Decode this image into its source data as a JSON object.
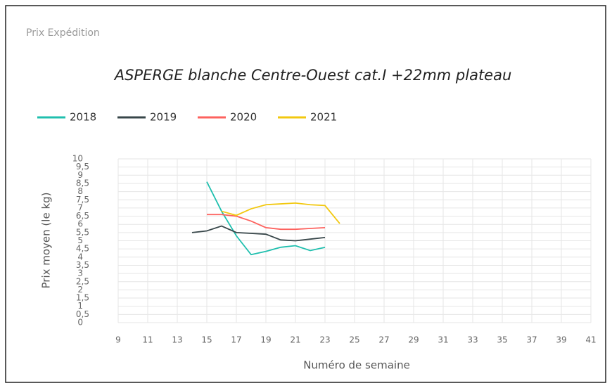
{
  "header": "Prix Expédition",
  "chart_data": {
    "type": "line",
    "title": "ASPERGE blanche Centre-Ouest cat.I +22mm plateau",
    "x_label": "Numéro de semaine",
    "y_label": "Prix moyen  (le kg)",
    "x": [
      14,
      15,
      16,
      17,
      18,
      19,
      20,
      21,
      22,
      23,
      24
    ],
    "series": [
      {
        "name": "2018",
        "color": "#1fbfae",
        "values": [
          null,
          8.6,
          6.8,
          5.3,
          4.15,
          4.35,
          4.6,
          4.7,
          4.4,
          4.6,
          null
        ]
      },
      {
        "name": "2019",
        "color": "#374649",
        "values": [
          5.5,
          5.6,
          5.9,
          5.5,
          5.45,
          5.4,
          5.05,
          5.0,
          5.1,
          5.2,
          null
        ]
      },
      {
        "name": "2020",
        "color": "#fd625e",
        "values": [
          null,
          6.6,
          6.6,
          6.5,
          6.2,
          5.8,
          5.7,
          5.7,
          5.75,
          5.8,
          null
        ]
      },
      {
        "name": "2021",
        "color": "#f2c80f",
        "values": [
          null,
          null,
          6.8,
          6.55,
          6.95,
          7.2,
          7.25,
          7.3,
          7.2,
          7.15,
          6.05
        ]
      }
    ],
    "xlim": [
      9,
      41
    ],
    "xticks": [
      9,
      11,
      13,
      15,
      17,
      19,
      21,
      23,
      25,
      27,
      29,
      31,
      33,
      35,
      37,
      39,
      41
    ],
    "ylim": [
      0,
      10
    ],
    "yticks": [
      0,
      {
        "value": 0.5,
        "label": "0,5"
      },
      1,
      {
        "value": 1.5,
        "label": "1,5"
      },
      2,
      {
        "value": 2.5,
        "label": "2,5"
      },
      3,
      {
        "value": 3.5,
        "label": "3,5"
      },
      4,
      {
        "value": 4.5,
        "label": "4,5"
      },
      5,
      {
        "value": 5.5,
        "label": "5,5"
      },
      6,
      {
        "value": 6.5,
        "label": "6,5"
      },
      7,
      {
        "value": 7.5,
        "label": "7,5"
      },
      8,
      {
        "value": 8.5,
        "label": "8,5"
      },
      9,
      {
        "value": 9.5,
        "label": "9,5"
      },
      10
    ],
    "grid": true,
    "legend": "top-left"
  }
}
